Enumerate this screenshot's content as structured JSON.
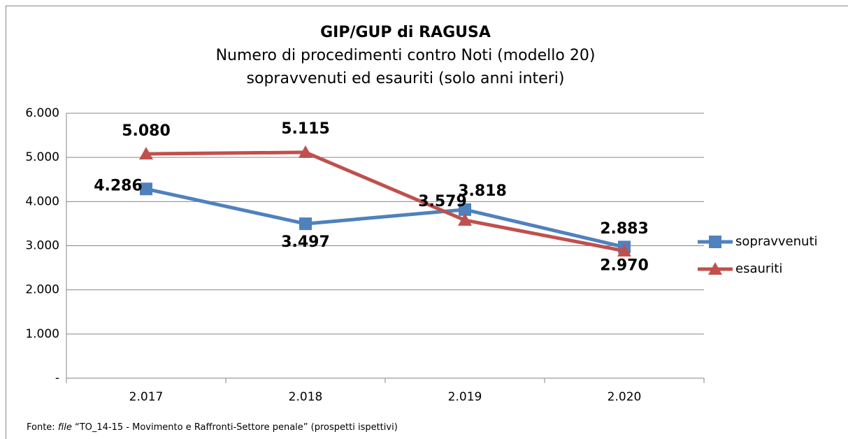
{
  "chart_data": {
    "type": "line",
    "title": "GIP/GUP di RAGUSA",
    "subtitle": [
      "Numero di procedimenti contro Noti (modello 20)",
      "sopravvenuti ed esauriti (solo anni interi)"
    ],
    "categories": [
      "2.017",
      "2.018",
      "2.019",
      "2.020"
    ],
    "series": [
      {
        "name": "sopravvenuti",
        "color": "#4f81bd",
        "label_color": "#0070c0",
        "marker": "square",
        "values": [
          4286,
          3497,
          3818,
          2970
        ],
        "value_labels": [
          "4.286",
          "3.497",
          "3.818",
          "2.970"
        ]
      },
      {
        "name": "esauriti",
        "color": "#c0504d",
        "label_color": "#c00000",
        "marker": "triangle",
        "values": [
          5080,
          5115,
          3579,
          2883
        ],
        "value_labels": [
          "5.080",
          "5.115",
          "3.579",
          "2.883"
        ]
      }
    ],
    "ylim": [
      0,
      6000
    ],
    "yticks": [
      {
        "value": 0,
        "label": "-"
      },
      {
        "value": 1000,
        "label": "1.000"
      },
      {
        "value": 2000,
        "label": "2.000"
      },
      {
        "value": 3000,
        "label": "3.000"
      },
      {
        "value": 4000,
        "label": "4.000"
      },
      {
        "value": 5000,
        "label": "5.000"
      },
      {
        "value": 6000,
        "label": "6.000"
      }
    ],
    "grid": true,
    "legend": "right",
    "source": {
      "prefix": "Fonte:",
      "italic": "file",
      "text": "“TO_14-15 - Movimento e Raffronti-Settore penale” (prospetti ispettivi)"
    }
  }
}
